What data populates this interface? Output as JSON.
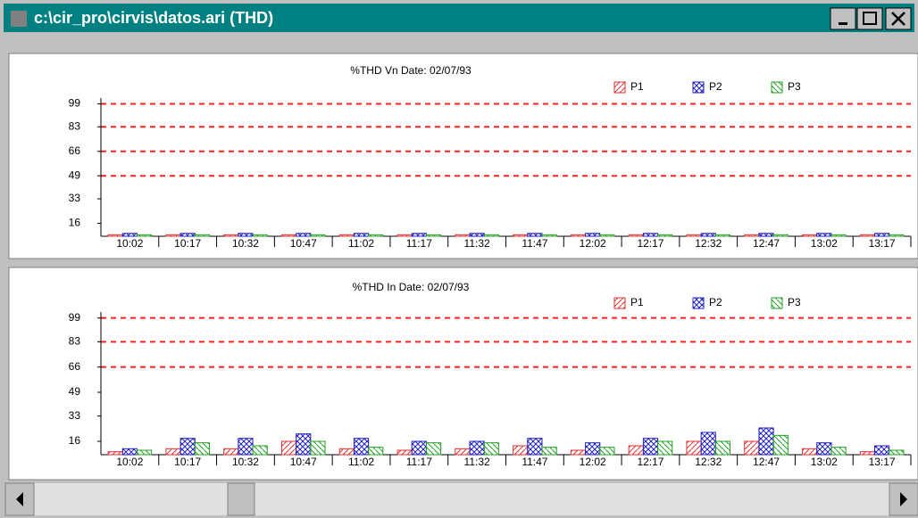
{
  "window": {
    "title": "c:\\cir_pro\\cirvis\\datos.ari (THD)"
  },
  "chart_data": [
    {
      "type": "bar",
      "title": "%THD Vn    Date: 02/07/93",
      "categories": [
        "10:02",
        "10:17",
        "10:32",
        "10:47",
        "11:02",
        "11:17",
        "11:32",
        "11:47",
        "12:02",
        "12:17",
        "12:32",
        "12:47",
        "13:02",
        "13:17"
      ],
      "series": [
        {
          "name": "P1",
          "color": "#e03030",
          "values": [
            8,
            8,
            8,
            8,
            8,
            8,
            8,
            8,
            8,
            8,
            8,
            8,
            8,
            8
          ]
        },
        {
          "name": "P2",
          "color": "#2020c0",
          "values": [
            9,
            9,
            9,
            9,
            9,
            9,
            9,
            9,
            9,
            9,
            9,
            9,
            9,
            9
          ]
        },
        {
          "name": "P3",
          "color": "#20a020",
          "values": [
            8,
            8,
            8,
            8,
            8,
            8,
            8,
            8,
            8,
            8,
            8,
            8,
            8,
            8
          ]
        }
      ],
      "ylim": [
        7,
        103
      ],
      "yticks": [
        16,
        33,
        49,
        66,
        83,
        99
      ],
      "limit_lines": [
        99,
        83,
        66,
        49
      ],
      "limit_color": "#ff2020",
      "legend": "top-right"
    },
    {
      "type": "bar",
      "title": "%THD In    Date: 02/07/93",
      "categories": [
        "10:02",
        "10:17",
        "10:32",
        "10:47",
        "11:02",
        "11:17",
        "11:32",
        "11:47",
        "12:02",
        "12:17",
        "12:32",
        "12:47",
        "13:02",
        "13:17"
      ],
      "series": [
        {
          "name": "P1",
          "color": "#e03030",
          "values": [
            9,
            11,
            11,
            16,
            11,
            10,
            11,
            13,
            10,
            13,
            16,
            16,
            11,
            9
          ]
        },
        {
          "name": "P2",
          "color": "#2020c0",
          "values": [
            11,
            18,
            18,
            21,
            18,
            16,
            16,
            18,
            15,
            18,
            22,
            25,
            15,
            13
          ]
        },
        {
          "name": "P3",
          "color": "#20a020",
          "values": [
            10,
            15,
            13,
            16,
            12,
            15,
            15,
            12,
            12,
            16,
            16,
            20,
            12,
            10
          ]
        }
      ],
      "ylim": [
        7,
        103
      ],
      "yticks": [
        16,
        33,
        49,
        66,
        83,
        99
      ],
      "limit_lines": [
        99,
        83,
        66
      ],
      "limit_color": "#ff2020",
      "legend": "top-right"
    }
  ]
}
